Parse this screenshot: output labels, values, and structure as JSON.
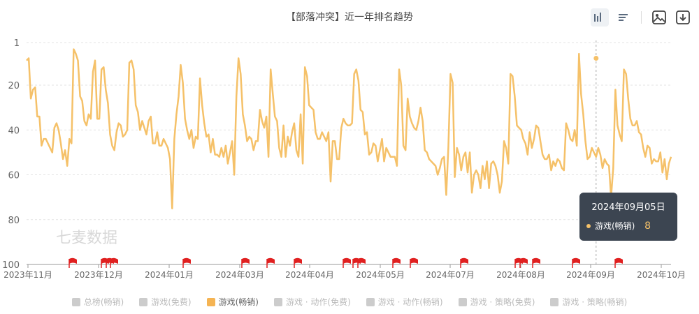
{
  "title": "【部落冲突】近一年排名趋势",
  "watermark": "七麦数据",
  "toolbar": {
    "icons": [
      "bar-chart-icon",
      "list-icon",
      "save-image-icon",
      "download-icon"
    ]
  },
  "tooltip": {
    "date": "2024年09月05日",
    "series": "游戏(畅销)",
    "value": "8"
  },
  "legend": [
    {
      "label": "总榜(畅销)",
      "active": false
    },
    {
      "label": "游戏(免费)",
      "active": false
    },
    {
      "label": "游戏(畅销)",
      "active": true
    },
    {
      "label": "游戏 · 动作(免费)",
      "active": false
    },
    {
      "label": "游戏 · 动作(畅销)",
      "active": false
    },
    {
      "label": "游戏 · 策略(免费)",
      "active": false
    },
    {
      "label": "游戏 · 策略(畅销)",
      "active": false
    }
  ],
  "colors": {
    "line": "#f5c169",
    "flag": "#e02020",
    "grid": "#e3e3e3",
    "axis": "#666666"
  },
  "chart_data": {
    "type": "line",
    "ylim": [
      1,
      100
    ],
    "y_inverted": true,
    "yticks": [
      1,
      20,
      40,
      60,
      80,
      100
    ],
    "xticks": [
      "2023年11月",
      "2023年12月",
      "2024年01月",
      "2024年03月",
      "2024年04月",
      "2024年05月",
      "2024年07月",
      "2024年08月",
      "2024年09月",
      "2024年10月"
    ],
    "series": [
      {
        "name": "游戏(畅销)",
        "values": [
          9,
          8,
          26,
          22,
          21,
          34,
          34,
          47,
          44,
          44,
          46,
          48,
          50,
          39,
          37,
          40,
          46,
          53,
          49,
          56,
          44,
          46,
          4,
          6,
          9,
          25,
          27,
          36,
          38,
          33,
          35,
          14,
          9,
          35,
          35,
          13,
          12,
          22,
          28,
          42,
          47,
          49,
          41,
          37,
          38,
          43,
          42,
          40,
          10,
          9,
          13,
          29,
          32,
          40,
          36,
          39,
          42,
          36,
          34,
          46,
          46,
          41,
          47,
          47,
          44,
          46,
          48,
          53,
          75,
          44,
          33,
          25,
          11,
          19,
          35,
          40,
          44,
          40,
          48,
          43,
          44,
          17,
          29,
          37,
          43,
          42,
          50,
          44,
          51,
          51,
          52,
          48,
          52,
          47,
          55,
          50,
          45,
          60,
          25,
          8,
          15,
          33,
          38,
          45,
          43,
          44,
          49,
          45,
          45,
          31,
          36,
          39,
          34,
          52,
          13,
          24,
          34,
          36,
          48,
          52,
          38,
          52,
          43,
          47,
          41,
          37,
          49,
          52,
          33,
          55,
          12,
          16,
          29,
          30,
          31,
          41,
          44,
          44,
          41,
          43,
          45,
          41,
          63,
          45,
          45,
          53,
          53,
          39,
          35,
          37,
          38,
          38,
          37,
          15,
          13,
          18,
          31,
          32,
          42,
          41,
          51,
          50,
          46,
          47,
          54,
          49,
          44,
          54,
          48,
          50,
          52,
          52,
          52,
          56,
          13,
          20,
          47,
          49,
          26,
          34,
          37,
          39,
          40,
          36,
          30,
          36,
          49,
          50,
          53,
          54,
          55,
          56,
          60,
          57,
          53,
          52,
          69,
          48,
          15,
          19,
          61,
          48,
          51,
          58,
          52,
          50,
          59,
          50,
          68,
          60,
          58,
          60,
          66,
          56,
          62,
          54,
          66,
          55,
          54,
          56,
          60,
          68,
          63,
          45,
          48,
          55,
          15,
          16,
          25,
          38,
          39,
          40,
          44,
          46,
          51,
          41,
          48,
          44,
          38,
          39,
          45,
          51,
          53,
          53,
          51,
          58,
          54,
          56,
          53,
          54,
          57,
          58,
          37,
          40,
          44,
          45,
          40,
          47,
          6,
          24,
          33,
          45,
          53,
          52,
          48,
          50,
          52,
          48,
          51,
          57,
          53,
          55,
          56,
          70,
          57,
          22,
          38,
          42,
          45,
          13,
          15,
          26,
          35,
          38,
          38,
          36,
          41,
          42,
          48,
          52,
          47,
          48,
          55,
          53,
          54,
          54,
          50,
          59,
          53,
          62,
          55,
          52
        ],
        "highlight": {
          "date": "2024年09月05日",
          "value": 8
        }
      }
    ],
    "event_flag_count": 19
  }
}
